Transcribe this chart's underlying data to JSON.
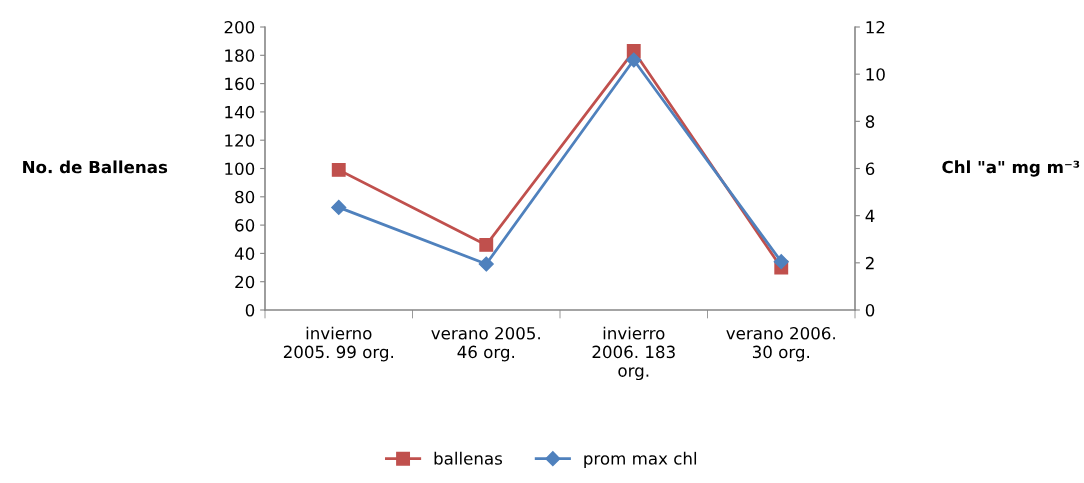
{
  "chart_data": {
    "type": "line",
    "categories": [
      "invierno\n2005. 99 org.",
      "verano 2005.\n46 org.",
      "invierro\n2006. 183\norg.",
      "verano 2006.\n30 org."
    ],
    "series": [
      {
        "name": "ballenas",
        "color": "#c0504d",
        "marker": "square",
        "values": [
          99,
          46,
          183,
          30
        ]
      },
      {
        "name": "prom max chl",
        "color": "#4f81bd",
        "marker": "diamond",
        "axis": "y2",
        "values": [
          4.35,
          1.95,
          10.6,
          2.05
        ]
      }
    ],
    "ylabel": "No. de Ballenas",
    "y2label": "Chl \"a\" mg m⁻³",
    "ylim": [
      0,
      200
    ],
    "yticks": [
      0,
      20,
      40,
      60,
      80,
      100,
      120,
      140,
      160,
      180,
      200
    ],
    "y2lim": [
      0,
      12
    ],
    "y2ticks": [
      0,
      2,
      4,
      6,
      8,
      10,
      12
    ],
    "grid": false,
    "legend": "bottom",
    "line_style": "solid"
  }
}
